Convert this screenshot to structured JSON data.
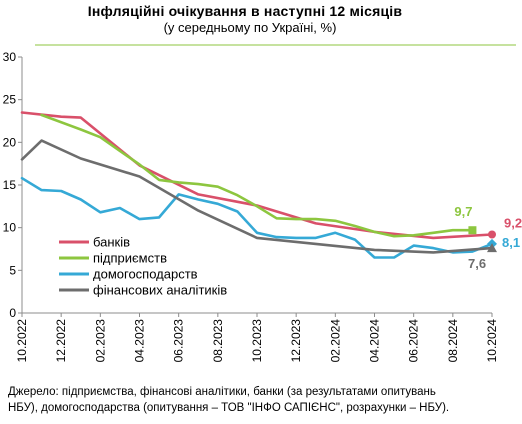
{
  "title": "Інфляційні очікування в наступні  12 місяців",
  "subtitle": "(у середньому по Україні, %)",
  "source_lines": [
    "Джерело: підприємства, фінансові аналітики, банки (за результатами опитувань",
    "НБУ), домогосподарства (опитування – ТОВ \"ІНФО САПІЄНС\", розрахунки – НБУ)."
  ],
  "colors": {
    "banks": "#d9506a",
    "enterprises": "#8dc63f",
    "households": "#35a9d6",
    "analysts": "#6d6d6d",
    "accent_line": "#8dc63f"
  },
  "chart_data": {
    "type": "line",
    "title": "Інфляційні очікування в наступні  12 місяців",
    "subtitle": "(у середньому по Україні, %)",
    "x_labels": [
      "10.2022",
      "12.2022",
      "02.2023",
      "04.2023",
      "06.2023",
      "08.2023",
      "10.2023",
      "12.2023",
      "02.2024",
      "04.2024",
      "06.2024",
      "08.2024",
      "10.2024"
    ],
    "y_ticks": [
      "0",
      "5",
      "10",
      "15",
      "20",
      "25",
      "30"
    ],
    "ylim": [
      0,
      30
    ],
    "x_start": "10.2022",
    "x_end": "10.2024",
    "grid": false,
    "legend_position": "left-middle",
    "series": [
      {
        "key": "banks",
        "name": "банків",
        "x": [
          "10.2022",
          "12.2022",
          "01.2023",
          "04.2023",
          "07.2023",
          "10.2023",
          "01.2024",
          "04.2024",
          "07.2024",
          "10.2024"
        ],
        "values": [
          23.5,
          23.0,
          22.9,
          17.3,
          13.9,
          12.6,
          10.5,
          9.5,
          8.8,
          9.2
        ],
        "end_label": "9,2"
      },
      {
        "key": "enterprises",
        "name": "підприємств",
        "x": [
          "11.2022",
          "01.2023",
          "02.2023",
          "03.2023",
          "04.2023",
          "05.2023",
          "06.2023",
          "07.2023",
          "08.2023",
          "09.2023",
          "10.2023",
          "11.2023",
          "12.2023",
          "01.2024",
          "02.2024",
          "03.2024",
          "04.2024",
          "05.2024",
          "06.2024",
          "07.2024",
          "08.2024",
          "09.2024"
        ],
        "values": [
          23.2,
          21.5,
          20.6,
          19.0,
          17.4,
          15.6,
          15.3,
          15.1,
          14.8,
          13.8,
          12.5,
          11.1,
          11.0,
          11.0,
          10.8,
          10.2,
          9.5,
          9.0,
          9.1,
          9.4,
          9.7,
          9.7
        ],
        "end_label": "9,7"
      },
      {
        "key": "households",
        "name": "домогосподарств",
        "x": [
          "10.2022",
          "11.2022",
          "12.2022",
          "01.2023",
          "02.2023",
          "03.2023",
          "04.2023",
          "05.2023",
          "06.2023",
          "07.2023",
          "08.2023",
          "09.2023",
          "10.2023",
          "11.2023",
          "12.2023",
          "01.2024",
          "02.2024",
          "03.2024",
          "04.2024",
          "05.2024",
          "06.2024",
          "07.2024",
          "08.2024",
          "09.2024",
          "10.2024"
        ],
        "values": [
          15.8,
          14.4,
          14.3,
          13.3,
          11.8,
          12.3,
          11.0,
          11.2,
          13.9,
          13.3,
          12.8,
          11.9,
          9.4,
          8.9,
          8.8,
          8.8,
          9.4,
          8.6,
          6.5,
          6.5,
          7.9,
          7.6,
          7.1,
          7.2,
          8.1
        ],
        "end_label": "8,1"
      },
      {
        "key": "analysts",
        "name": "фінансових аналітиків",
        "x": [
          "10.2022",
          "11.2022",
          "01.2023",
          "04.2023",
          "07.2023",
          "10.2023",
          "01.2024",
          "04.2024",
          "07.2024",
          "10.2024"
        ],
        "values": [
          18.0,
          20.2,
          18.1,
          16.0,
          12.0,
          8.8,
          8.1,
          7.4,
          7.1,
          7.6
        ],
        "end_label": "7,6"
      }
    ]
  }
}
